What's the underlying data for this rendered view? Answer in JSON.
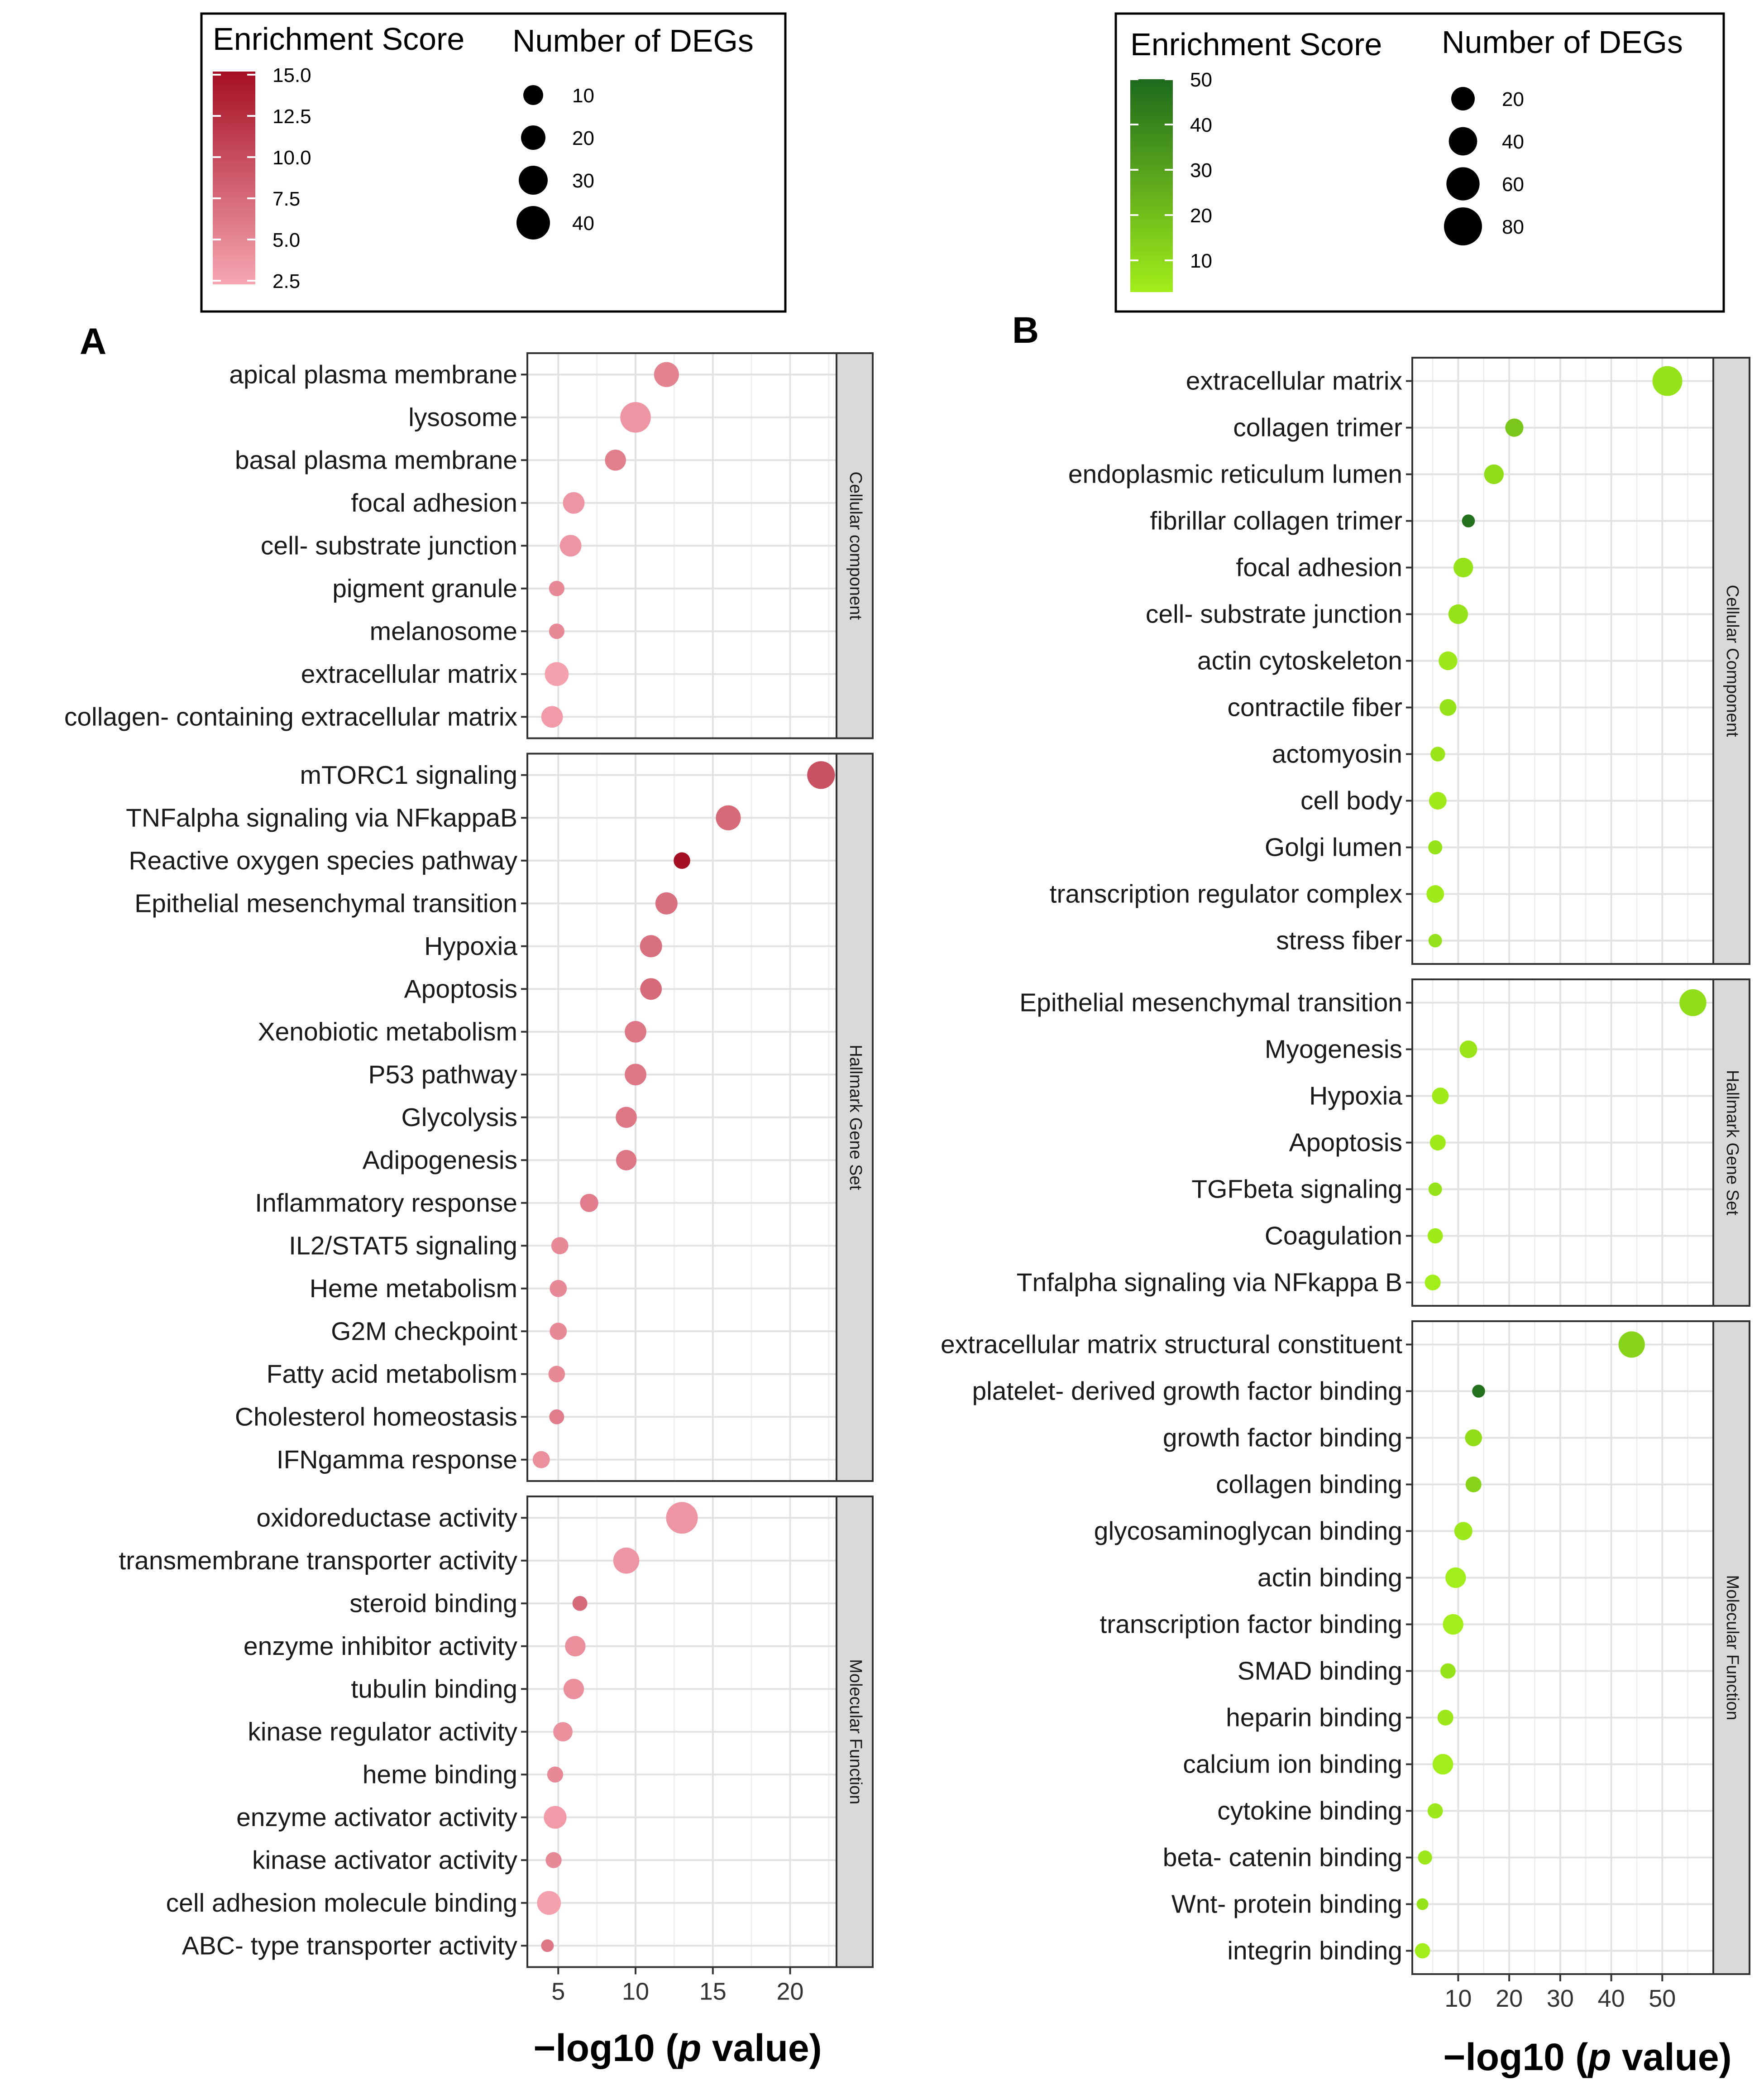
{
  "chart_data": [
    {
      "panel": "A",
      "type": "scatter",
      "xlabel_prefix": "−log10 (",
      "xlabel_italic": "p",
      "xlabel_suffix": " value)",
      "xlim": [
        3,
        23
      ],
      "xticks": [
        5,
        10,
        15,
        20
      ],
      "grid": true,
      "legend": {
        "color_title": "Enrichment Score",
        "color_min": 2.5,
        "color_max": 15.0,
        "color_ticks": [
          "15.0",
          "12.5",
          "10.0",
          "7.5",
          "5.0",
          "2.5"
        ],
        "low_color": "#f7a7b3",
        "high_color": "#a50f23",
        "size_title": "Number of DEGs",
        "size_ticks": [
          "10",
          "20",
          "30",
          "40"
        ]
      },
      "facets": [
        {
          "label": "Cellular component",
          "terms": [
            {
              "term": "apical plasma membrane",
              "x": 12.0,
              "score": 5.5,
              "count": 30
            },
            {
              "term": "lysosome",
              "x": 10.0,
              "score": 4.0,
              "count": 40
            },
            {
              "term": "basal plasma membrane",
              "x": 8.7,
              "score": 5.8,
              "count": 23
            },
            {
              "term": "focal adhesion",
              "x": 6.0,
              "score": 4.0,
              "count": 24
            },
            {
              "term": "cell- substrate junction",
              "x": 5.8,
              "score": 4.0,
              "count": 24
            },
            {
              "term": "pigment granule",
              "x": 4.9,
              "score": 5.0,
              "count": 13
            },
            {
              "term": "melanosome",
              "x": 4.9,
              "score": 5.0,
              "count": 13
            },
            {
              "term": "extracellular matrix",
              "x": 4.9,
              "score": 3.0,
              "count": 28
            },
            {
              "term": "collagen- containing extracellular matrix",
              "x": 4.6,
              "score": 3.5,
              "count": 24
            }
          ]
        },
        {
          "label": "Hallmark Gene Set",
          "terms": [
            {
              "term": "mTORC1 signaling",
              "x": 22.0,
              "score": 9.5,
              "count": 35
            },
            {
              "term": "TNFalpha signaling via NFkappaB",
              "x": 16.0,
              "score": 7.5,
              "count": 30
            },
            {
              "term": "Reactive oxygen species pathway",
              "x": 13.0,
              "score": 15.0,
              "count": 15
            },
            {
              "term": "Epithelial mesenchymal transition",
              "x": 12.0,
              "score": 7.0,
              "count": 25
            },
            {
              "term": "Hypoxia",
              "x": 11.0,
              "score": 7.0,
              "count": 25
            },
            {
              "term": "Apoptosis",
              "x": 11.0,
              "score": 7.5,
              "count": 24
            },
            {
              "term": "Xenobiotic metabolism",
              "x": 10.0,
              "score": 6.5,
              "count": 24
            },
            {
              "term": "P53 pathway",
              "x": 10.0,
              "score": 6.5,
              "count": 24
            },
            {
              "term": "Glycolysis",
              "x": 9.4,
              "score": 6.5,
              "count": 23
            },
            {
              "term": "Adipogenesis",
              "x": 9.4,
              "score": 6.5,
              "count": 22
            },
            {
              "term": "Inflammatory response",
              "x": 7.0,
              "score": 6.0,
              "count": 18
            },
            {
              "term": "IL2/STAT5 signaling",
              "x": 5.1,
              "score": 5.0,
              "count": 16
            },
            {
              "term": "Heme metabolism",
              "x": 5.0,
              "score": 5.0,
              "count": 16
            },
            {
              "term": "G2M checkpoint",
              "x": 5.0,
              "score": 5.0,
              "count": 16
            },
            {
              "term": "Fatty acid metabolism",
              "x": 4.9,
              "score": 5.0,
              "count": 15
            },
            {
              "term": "Cholesterol homeostasis",
              "x": 4.9,
              "score": 6.0,
              "count": 12
            },
            {
              "term": "IFNgamma response",
              "x": 3.9,
              "score": 4.5,
              "count": 16
            }
          ]
        },
        {
          "label": "Molecular Function",
          "terms": [
            {
              "term": "oxidoreductase activity",
              "x": 13.0,
              "score": 4.0,
              "count": 42
            },
            {
              "term": "transmembrane transporter activity",
              "x": 9.4,
              "score": 4.0,
              "count": 32
            },
            {
              "term": "steroid binding",
              "x": 6.4,
              "score": 7.5,
              "count": 12
            },
            {
              "term": "enzyme inhibitor activity",
              "x": 6.1,
              "score": 4.5,
              "count": 22
            },
            {
              "term": "tubulin binding",
              "x": 6.0,
              "score": 4.5,
              "count": 22
            },
            {
              "term": "kinase regulator activity",
              "x": 5.3,
              "score": 4.5,
              "count": 20
            },
            {
              "term": "heme binding",
              "x": 4.8,
              "score": 5.0,
              "count": 14
            },
            {
              "term": "enzyme activator activity",
              "x": 4.8,
              "score": 3.5,
              "count": 26
            },
            {
              "term": "kinase activator activity",
              "x": 4.7,
              "score": 5.0,
              "count": 14
            },
            {
              "term": "cell adhesion molecule binding",
              "x": 4.4,
              "score": 3.0,
              "count": 28
            },
            {
              "term": "ABC- type transporter activity",
              "x": 4.3,
              "score": 6.5,
              "count": 8
            }
          ]
        }
      ]
    },
    {
      "panel": "B",
      "type": "scatter",
      "xlabel_prefix": "−log10 (",
      "xlabel_italic": "p",
      "xlabel_suffix": " value)",
      "xlim": [
        1,
        60
      ],
      "xticks": [
        10,
        20,
        30,
        40,
        50
      ],
      "grid": true,
      "legend": {
        "color_title": "Enrichment Score",
        "color_min": 4,
        "color_max": 50,
        "color_ticks": [
          "50",
          "40",
          "30",
          "20",
          "10"
        ],
        "low_color": "#a2ee1a",
        "high_color": "#1d6a1d",
        "size_title": "Number of DEGs",
        "size_ticks": [
          "20",
          "40",
          "60",
          "80"
        ]
      },
      "facets": [
        {
          "label": "Cellular Component",
          "terms": [
            {
              "term": "extracellular matrix",
              "x": 51.0,
              "score": 8,
              "count": 80
            },
            {
              "term": "collagen trimer",
              "x": 21.0,
              "score": 18,
              "count": 40
            },
            {
              "term": "endoplasmic reticulum lumen",
              "x": 17.0,
              "score": 10,
              "count": 45
            },
            {
              "term": "fibrillar collagen trimer",
              "x": 12.0,
              "score": 48,
              "count": 22
            },
            {
              "term": "focal adhesion",
              "x": 11.0,
              "score": 8,
              "count": 45
            },
            {
              "term": "cell- substrate junction",
              "x": 10.0,
              "score": 8,
              "count": 45
            },
            {
              "term": "actin cytoskeleton",
              "x": 8.0,
              "score": 6,
              "count": 42
            },
            {
              "term": "contractile fiber",
              "x": 8.0,
              "score": 8,
              "count": 35
            },
            {
              "term": "actomyosin",
              "x": 6.0,
              "score": 7,
              "count": 28
            },
            {
              "term": "cell body",
              "x": 6.0,
              "score": 5,
              "count": 38
            },
            {
              "term": "Golgi lumen",
              "x": 5.5,
              "score": 8,
              "count": 26
            },
            {
              "term": "transcription regulator complex",
              "x": 5.5,
              "score": 5,
              "count": 38
            },
            {
              "term": "stress fiber",
              "x": 5.5,
              "score": 9,
              "count": 24
            }
          ]
        },
        {
          "label": "Hallmark Gene Set",
          "terms": [
            {
              "term": "Epithelial mesenchymal transition",
              "x": 56.0,
              "score": 10,
              "count": 70
            },
            {
              "term": "Myogenesis",
              "x": 12.0,
              "score": 7,
              "count": 38
            },
            {
              "term": "Hypoxia",
              "x": 6.5,
              "score": 5,
              "count": 35
            },
            {
              "term": "Apoptosis",
              "x": 6.0,
              "score": 5,
              "count": 32
            },
            {
              "term": "TGFbeta signaling",
              "x": 5.5,
              "score": 8,
              "count": 24
            },
            {
              "term": "Coagulation",
              "x": 5.5,
              "score": 5,
              "count": 30
            },
            {
              "term": "Tnfalpha signaling via NFkappa B",
              "x": 5.0,
              "score": 4,
              "count": 32
            }
          ]
        },
        {
          "label": "Molecular Function",
          "terms": [
            {
              "term": "extracellular matrix structural constituent",
              "x": 44.0,
              "score": 13,
              "count": 68
            },
            {
              "term": "platelet- derived growth factor binding",
              "x": 14.0,
              "score": 48,
              "count": 22
            },
            {
              "term": "growth factor binding",
              "x": 13.0,
              "score": 10,
              "count": 36
            },
            {
              "term": "collagen binding",
              "x": 13.0,
              "score": 13,
              "count": 32
            },
            {
              "term": "glycosaminoglycan binding",
              "x": 11.0,
              "score": 6,
              "count": 40
            },
            {
              "term": "actin binding",
              "x": 9.5,
              "score": 4,
              "count": 48
            },
            {
              "term": "transcription factor binding",
              "x": 9.0,
              "score": 4,
              "count": 48
            },
            {
              "term": "SMAD binding",
              "x": 8.0,
              "score": 8,
              "count": 30
            },
            {
              "term": "heparin binding",
              "x": 7.5,
              "score": 6,
              "count": 32
            },
            {
              "term": "calcium ion binding",
              "x": 7.0,
              "score": 4,
              "count": 48
            },
            {
              "term": "cytokine binding",
              "x": 5.5,
              "score": 6,
              "count": 30
            },
            {
              "term": "beta- catenin binding",
              "x": 3.5,
              "score": 6,
              "count": 26
            },
            {
              "term": "Wnt- protein binding",
              "x": 3.0,
              "score": 8,
              "count": 18
            },
            {
              "term": "integrin binding",
              "x": 3.0,
              "score": 4,
              "count": 30
            }
          ]
        }
      ]
    }
  ]
}
